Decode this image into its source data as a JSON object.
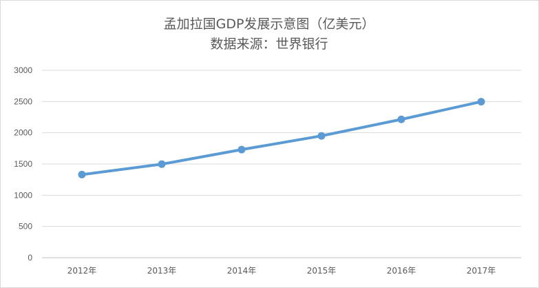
{
  "chart_data": {
    "type": "line",
    "title": "孟加拉国GDP发展示意图（亿美元）",
    "subtitle": "数据来源：世界银行",
    "categories": [
      "2012年",
      "2013年",
      "2014年",
      "2015年",
      "2016年",
      "2017年"
    ],
    "series": [
      {
        "values": [
          1330,
          1497,
          1730,
          1950,
          2214,
          2497
        ]
      }
    ],
    "yticks": [
      0,
      500,
      1000,
      1500,
      2000,
      2500,
      3000
    ],
    "ylim": [
      0,
      3000
    ],
    "xlabel": "",
    "ylabel": "",
    "grid": true,
    "legend": "none",
    "line_color": "#5b9bd5"
  }
}
